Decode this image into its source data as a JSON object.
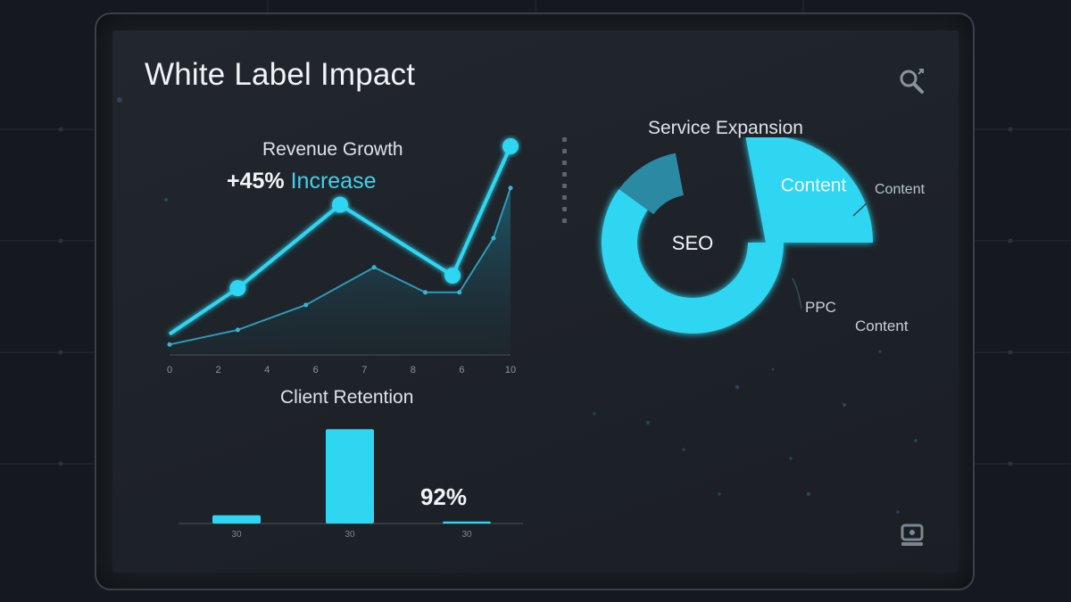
{
  "page": {
    "title": "White Label Impact",
    "accent_color": "#2fd6f2",
    "icons": {
      "top_right": "search-icon",
      "bottom_right": "device-icon"
    }
  },
  "chart_data": [
    {
      "type": "line",
      "title": "Revenue Growth",
      "annotation": {
        "value": "+45%",
        "word": "Increase"
      },
      "x_ticks": [
        "0",
        "2",
        "4",
        "6",
        "7",
        "8",
        "6",
        "10"
      ],
      "xlim": [
        0,
        10
      ],
      "ylim": [
        0,
        100
      ],
      "series": [
        {
          "x": [
            0,
            2,
            5,
            8.3,
            10
          ],
          "y": [
            10,
            32,
            72,
            38,
            100
          ]
        },
        {
          "x": [
            0,
            2,
            4,
            6,
            7.5,
            8.5,
            9.5,
            10
          ],
          "y": [
            5,
            12,
            24,
            42,
            30,
            30,
            56,
            80
          ]
        }
      ]
    },
    {
      "type": "pie",
      "title": "Service Expansion",
      "center_label": "SEO",
      "slices": [
        {
          "label": "SEO",
          "value": 60
        },
        {
          "label": "PPC",
          "value": 12
        },
        {
          "label": "Content",
          "value": 28
        }
      ],
      "callout_labels": [
        "Content",
        "PPC",
        "Content"
      ]
    },
    {
      "type": "bar",
      "title": "Client Retention",
      "categories": [
        "30",
        "30",
        "30"
      ],
      "values": [
        8,
        92,
        2
      ],
      "ylim": [
        0,
        100
      ],
      "annotation": "92%"
    }
  ]
}
